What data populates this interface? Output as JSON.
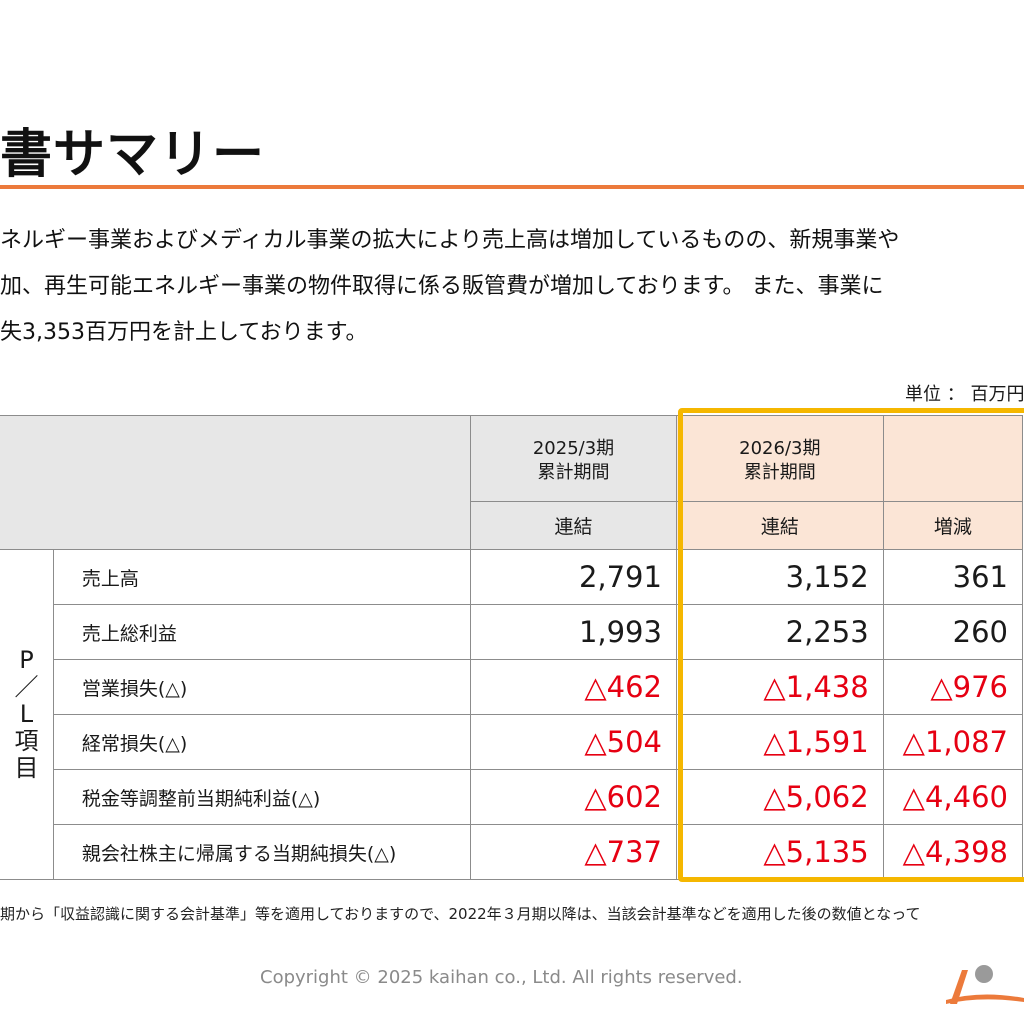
{
  "page": {
    "title": "書サマリー",
    "description": [
      "ネルギー事業およびメディカル事業の拡大により売上高は増加しているものの、新規事業や",
      "加、再生可能エネルギー事業の物件取得に係る販管費が増加しております。 また、事業に",
      "失3,353百万円を計上しております。"
    ],
    "unit_label": "単位 ： 百万円",
    "footnote": "期から「収益認識に関する会計基準」等を適用しておりますので、2022年３月期以降は、当該会計基準などを適用した後の数値となって",
    "copyright": "Copyright © 2025 kaihan co., Ltd. All rights reserved."
  },
  "table": {
    "side_label": [
      "P",
      "／",
      "L",
      "項",
      "目"
    ],
    "columns": [
      {
        "period_line1": "2025/3期",
        "period_line2": "累計期間",
        "sub": "連結"
      },
      {
        "period_line1": "2026/3期",
        "period_line2": "累計期間",
        "sub": "連結"
      },
      {
        "sub": "増減"
      }
    ],
    "rows": [
      {
        "label": "売上高",
        "v2025": "2,791",
        "v2026": "3,152",
        "diff": "361"
      },
      {
        "label": "売上総利益",
        "v2025": "1,993",
        "v2026": "2,253",
        "diff": "260"
      },
      {
        "label": "営業損失(△)",
        "v2025": "△462",
        "v2026": "△1,438",
        "diff": "△976"
      },
      {
        "label": "経常損失(△)",
        "v2025": "△504",
        "v2026": "△1,591",
        "diff": "△1,087"
      },
      {
        "label": "税金等調整前当期純利益(△)",
        "v2025": "△602",
        "v2026": "△5,062",
        "diff": "△4,460"
      },
      {
        "label": "親会社株主に帰属する当期純損失(△)",
        "v2025": "△737",
        "v2026": "△5,135",
        "diff": "△4,398"
      }
    ]
  },
  "colors": {
    "accent_rule": "#ec7a3b",
    "highlight_border": "#f5b700",
    "negative": "#e60012",
    "header_gray": "#e7e7e7",
    "header_peach": "#fbe5d6"
  }
}
